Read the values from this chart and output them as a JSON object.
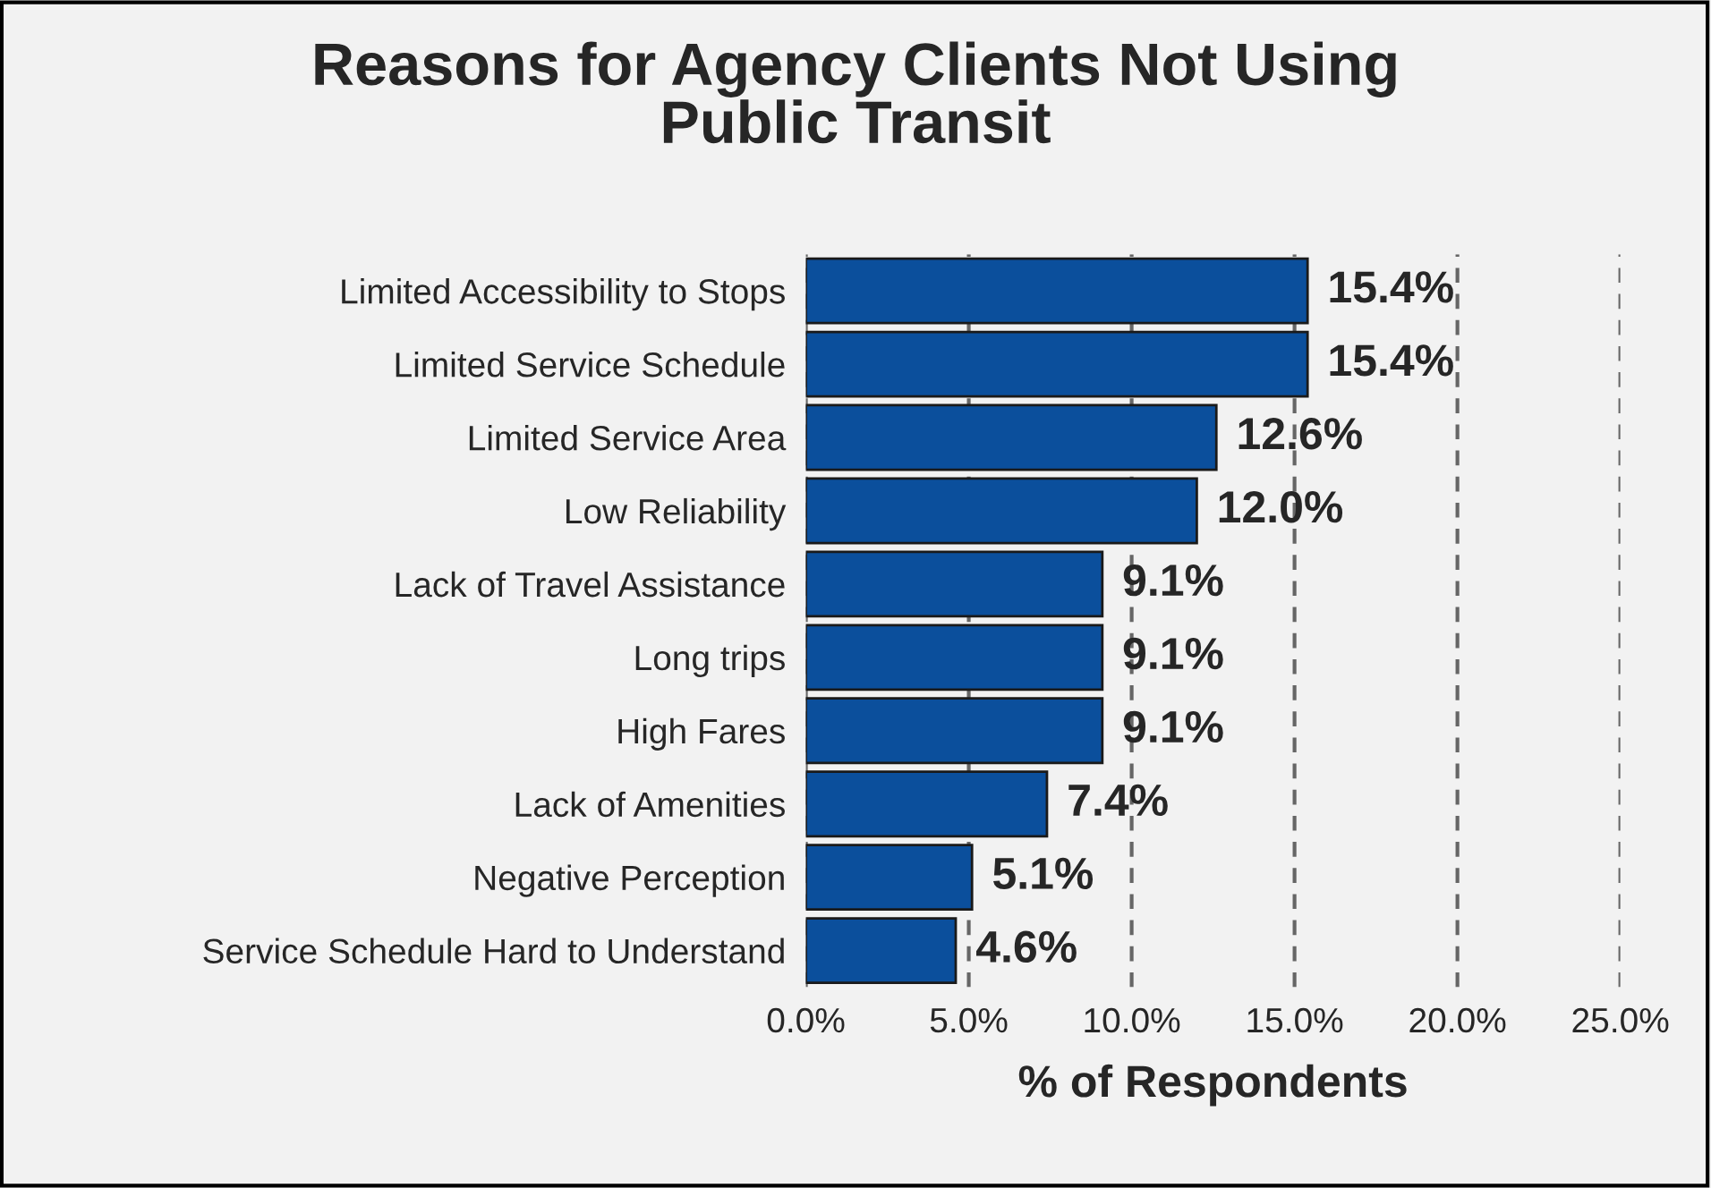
{
  "chart_data": {
    "type": "bar",
    "orientation": "horizontal",
    "title": "Reasons for Agency Clients Not Using\nPublic Transit",
    "xlabel": "% of Respondents",
    "categories": [
      "Limited Accessibility to Stops",
      "Limited Service Schedule",
      "Limited Service Area",
      "Low Reliability",
      "Lack of Travel Assistance",
      "Long trips",
      "High Fares",
      "Lack of Amenities",
      "Negative Perception",
      "Service Schedule Hard to Understand"
    ],
    "values": [
      15.4,
      15.4,
      12.6,
      12.0,
      9.1,
      9.1,
      9.1,
      7.4,
      5.1,
      4.6
    ],
    "value_labels": [
      "15.4%",
      "15.4%",
      "12.6%",
      "12.0%",
      "9.1%",
      "9.1%",
      "9.1%",
      "7.4%",
      "5.1%",
      "4.6%"
    ],
    "color": "#0b4f9c",
    "xlim": [
      0,
      25
    ],
    "xticks": [
      {
        "value": 0,
        "label": "0.0%"
      },
      {
        "value": 5,
        "label": "5.0%"
      },
      {
        "value": 10,
        "label": "10.0%"
      },
      {
        "value": 15,
        "label": "15.0%"
      },
      {
        "value": 20,
        "label": "20.0%"
      },
      {
        "value": 25,
        "label": "25.0%"
      }
    ],
    "grid": "x",
    "legend": false
  }
}
